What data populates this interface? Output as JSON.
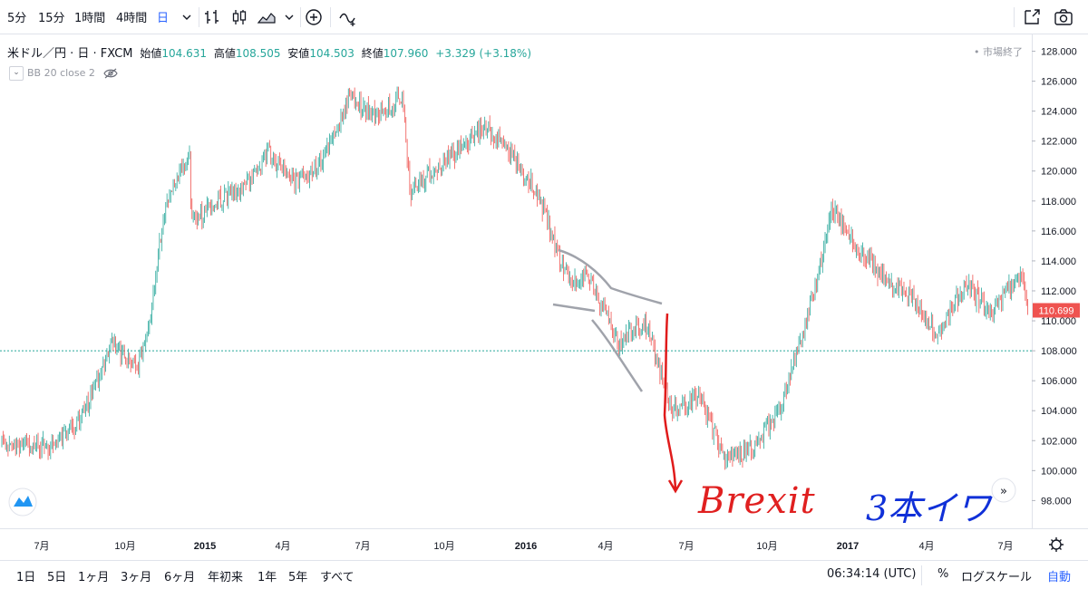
{
  "toolbar": {
    "intervals": [
      "5分",
      "15分",
      "1時間",
      "4時間",
      "日"
    ],
    "selected_interval": "日"
  },
  "legend": {
    "symbol": "米ドル／円 · 日 · FXCM",
    "open_label": "始値",
    "open": "104.631",
    "high_label": "高値",
    "high": "108.505",
    "low_label": "安値",
    "low": "104.503",
    "close_label": "終値",
    "close": "107.960",
    "change": "+3.329 (+3.18%)"
  },
  "indicator": {
    "text": "BB 20 close 2"
  },
  "market_status": "• 市場終了",
  "bottombar": {
    "ranges": [
      "1日",
      "5日",
      "1ヶ月",
      "3ヶ月",
      "6ヶ月",
      "年初来",
      "1年",
      "5年",
      "すべて"
    ],
    "time": "06:34:14 (UTC)",
    "percent": "%",
    "log_scale": "ログスケール",
    "auto": "自動"
  },
  "annotations": {
    "brexit": "Brexit",
    "bars": "3本イワ"
  },
  "colors": {
    "up": "#26a69a",
    "down": "#ef5350",
    "price_tag": "#ef5350",
    "ref_line": "#26a69a",
    "auto": "#2962ff"
  },
  "chart_data": {
    "type": "candlestick",
    "symbol": "USDJPY",
    "y_axis": {
      "ticks": [
        98,
        100,
        102,
        104,
        106,
        108,
        110,
        112,
        114,
        116,
        118,
        120,
        122,
        124,
        126,
        128
      ],
      "ylim": [
        96.2,
        128.4
      ]
    },
    "x_axis": {
      "tick_labels": [
        "7月",
        "10月",
        "2015",
        "4月",
        "7月",
        "10月",
        "2016",
        "4月",
        "7月",
        "10月",
        "2017",
        "4月",
        "7月"
      ]
    },
    "current_price": "110.699",
    "reference_level": 108.0,
    "price_path": [
      {
        "date": "2014-06",
        "value": 101.8
      },
      {
        "date": "2014-07",
        "value": 101.6
      },
      {
        "date": "2014-08",
        "value": 103.5
      },
      {
        "date": "2014-09",
        "value": 108.5
      },
      {
        "date": "2014-10",
        "value": 106.8
      },
      {
        "date": "2014-10-31",
        "value": 110.6
      },
      {
        "date": "2014-11",
        "value": 117.5
      },
      {
        "date": "2014-12",
        "value": 121.4
      },
      {
        "date": "2014-12-16",
        "value": 116.5
      },
      {
        "date": "2015-01",
        "value": 118.0
      },
      {
        "date": "2015-02",
        "value": 119.0
      },
      {
        "date": "2015-03",
        "value": 121.2
      },
      {
        "date": "2015-04",
        "value": 119.2
      },
      {
        "date": "2015-05",
        "value": 120.5
      },
      {
        "date": "2015-06",
        "value": 124.8
      },
      {
        "date": "2015-07",
        "value": 123.8
      },
      {
        "date": "2015-08",
        "value": 124.8
      },
      {
        "date": "2015-08-24",
        "value": 118.5
      },
      {
        "date": "2015-09",
        "value": 120.0
      },
      {
        "date": "2015-10",
        "value": 121.2
      },
      {
        "date": "2015-11",
        "value": 123.0
      },
      {
        "date": "2015-12",
        "value": 121.0
      },
      {
        "date": "2016-01",
        "value": 118.5
      },
      {
        "date": "2016-02",
        "value": 113.0
      },
      {
        "date": "2016-03",
        "value": 112.8
      },
      {
        "date": "2016-04",
        "value": 108.5
      },
      {
        "date": "2016-05",
        "value": 110.0
      },
      {
        "date": "2016-06",
        "value": 104.0
      },
      {
        "date": "2016-07",
        "value": 104.8
      },
      {
        "date": "2016-08",
        "value": 100.8
      },
      {
        "date": "2016-09",
        "value": 101.5
      },
      {
        "date": "2016-10",
        "value": 104.0
      },
      {
        "date": "2016-11",
        "value": 110.0
      },
      {
        "date": "2016-12",
        "value": 117.5
      },
      {
        "date": "2017-01",
        "value": 114.5
      },
      {
        "date": "2017-02",
        "value": 112.8
      },
      {
        "date": "2017-03",
        "value": 111.5
      },
      {
        "date": "2017-04",
        "value": 109.0
      },
      {
        "date": "2017-05",
        "value": 112.5
      },
      {
        "date": "2017-06",
        "value": 110.5
      },
      {
        "date": "2017-07",
        "value": 113.5
      },
      {
        "date": "2017-07-20",
        "value": 110.7
      }
    ]
  }
}
